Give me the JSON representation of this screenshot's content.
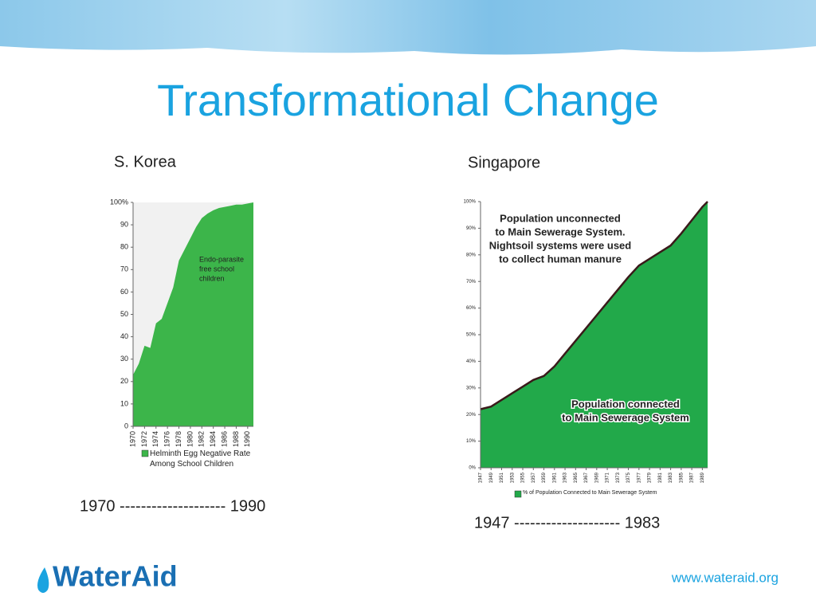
{
  "title": "Transformational Change",
  "chart_data": [
    {
      "type": "area",
      "title": "S. Korea",
      "x": [
        1970,
        1971,
        1972,
        1973,
        1974,
        1975,
        1976,
        1977,
        1978,
        1979,
        1980,
        1981,
        1982,
        1983,
        1984,
        1985,
        1986,
        1987,
        1988,
        1989,
        1990,
        1991
      ],
      "series": [
        {
          "name": "Helminth Egg Negative Rate Among School Children",
          "color": "#3cb54a",
          "values": [
            23,
            28,
            36,
            35,
            46,
            48,
            55,
            62,
            74,
            79,
            84,
            89,
            93,
            95,
            96.5,
            97.5,
            98,
            98.5,
            99,
            99,
            99.5,
            100
          ]
        }
      ],
      "xlim": [
        1970,
        1991
      ],
      "xticks": [
        1970,
        1972,
        1974,
        1976,
        1978,
        1980,
        1982,
        1984,
        1986,
        1988,
        1990
      ],
      "ylim": [
        0,
        100
      ],
      "yticks": [
        0,
        10,
        20,
        30,
        40,
        50,
        60,
        70,
        80,
        90,
        {
          "value": 100,
          "label": "100%"
        }
      ],
      "annotation": [
        "Endo-parasite",
        "free school",
        "children"
      ],
      "caption": "1970 -------------------- 1990"
    },
    {
      "type": "area",
      "title": "Singapore",
      "x": [
        1947,
        1949,
        1951,
        1953,
        1955,
        1957,
        1959,
        1961,
        1963,
        1965,
        1967,
        1969,
        1971,
        1973,
        1975,
        1977,
        1979,
        1981,
        1983,
        1985,
        1987,
        1989,
        1990
      ],
      "series": [
        {
          "name": "% of Population Connected to Main Sewerage System",
          "color": "#22a94a",
          "edge_color": "#3a1a1a",
          "values": [
            22,
            23,
            25.5,
            28,
            30.5,
            33,
            34.5,
            38.1,
            42.9,
            47.7,
            52.5,
            57.3,
            62.1,
            66.9,
            71.7,
            76,
            78.5,
            81,
            83.5,
            88,
            93,
            98,
            100
          ]
        }
      ],
      "xlim": [
        1947,
        1990
      ],
      "xticks": [
        1947,
        1949,
        1951,
        1953,
        1955,
        1957,
        1959,
        1961,
        1963,
        1965,
        1967,
        1969,
        1971,
        1973,
        1975,
        1977,
        1979,
        1981,
        1983,
        1985,
        1987,
        1989
      ],
      "ylim": [
        0,
        100
      ],
      "yticks": [
        {
          "value": 0,
          "label": "0%"
        },
        {
          "value": 10,
          "label": "10%"
        },
        {
          "value": 20,
          "label": "20%"
        },
        {
          "value": 30,
          "label": "30%"
        },
        {
          "value": 40,
          "label": "40%"
        },
        {
          "value": 50,
          "label": "50%"
        },
        {
          "value": 60,
          "label": "60%"
        },
        {
          "value": 70,
          "label": "70%"
        },
        {
          "value": 80,
          "label": "80%"
        },
        {
          "value": 90,
          "label": "90%"
        },
        {
          "value": 100,
          "label": "100%"
        }
      ],
      "annotations": [
        [
          "Population unconnected",
          "to Main Sewerage System.",
          "Nightsoil systems were used",
          "to collect human manure"
        ],
        [
          "Population connected",
          "to Main Sewerage System"
        ]
      ],
      "caption": "1947 -------------------- 1983"
    }
  ],
  "footer": {
    "logo": "WaterAid",
    "url": "www.wateraid.org"
  }
}
